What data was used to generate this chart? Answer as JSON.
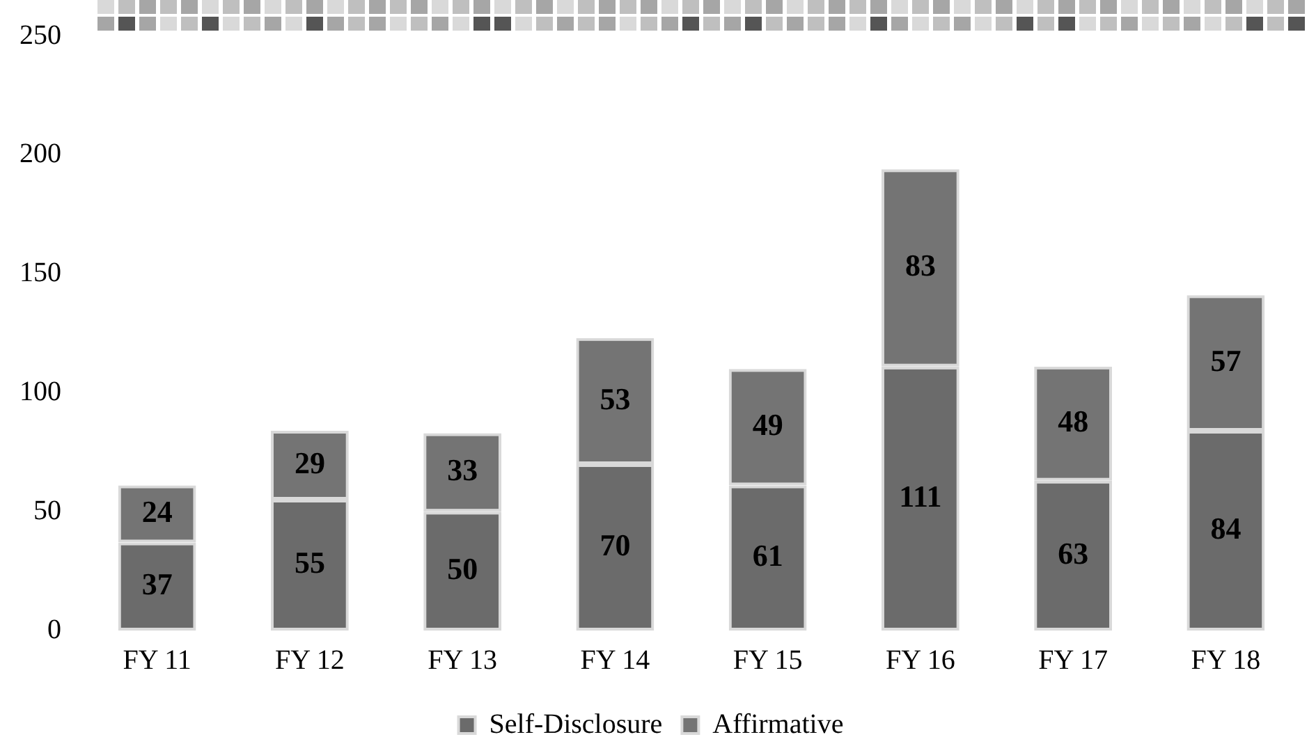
{
  "chart_data": {
    "type": "bar",
    "stacked": true,
    "categories": [
      "FY 11",
      "FY 12",
      "FY 13",
      "FY 14",
      "FY 15",
      "FY 16",
      "FY 17",
      "FY 18"
    ],
    "series": [
      {
        "name": "Self-Disclosure",
        "color": "#6b6b6b",
        "values": [
          37,
          55,
          50,
          70,
          61,
          111,
          63,
          84
        ]
      },
      {
        "name": "Affirmative",
        "color": "#747474",
        "values": [
          24,
          29,
          33,
          53,
          49,
          83,
          48,
          57
        ]
      }
    ],
    "ylim": [
      0,
      250
    ],
    "yticks": [
      0,
      50,
      100,
      150,
      200,
      250
    ],
    "grid": false,
    "legend": "bottom",
    "data_labels": true
  }
}
